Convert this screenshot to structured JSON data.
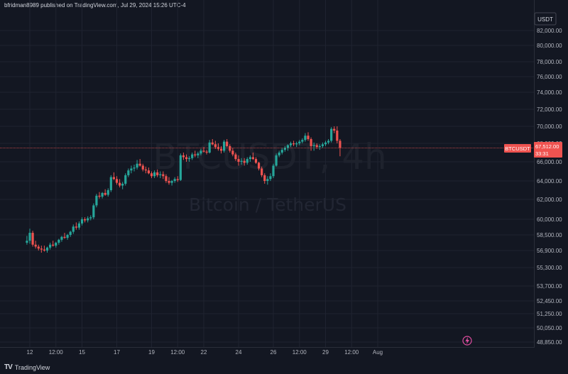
{
  "header": {
    "published_by": "bfridman8989 published on TradingView.com, Jul 29, 2024 15:26 UTC-4"
  },
  "watermark": {
    "symbol": "BTCUSDT, 4h",
    "name": "Bitcoin / TetherUS"
  },
  "price_tag": {
    "label": "BTCUSDT",
    "price": "67,512.00",
    "countdown": "33:31"
  },
  "footer": {
    "brand": "TradingView",
    "logo": "TV"
  },
  "colors": {
    "background": "#131722",
    "up": "#26a69a",
    "down": "#ef5350",
    "grid": "#1f2330",
    "text": "#b2b5be"
  },
  "chart_data": {
    "type": "candlestick",
    "currency": "USDT",
    "y_ticks": [
      {
        "label": "82,000.00",
        "value": 82000
      },
      {
        "label": "80,000.00",
        "value": 80000
      },
      {
        "label": "78,000.00",
        "value": 78000
      },
      {
        "label": "76,000.00",
        "value": 76000
      },
      {
        "label": "74,000.00",
        "value": 74000
      },
      {
        "label": "72,000.00",
        "value": 72000
      },
      {
        "label": "70,000.00",
        "value": 70000
      },
      {
        "label": "68,000.00",
        "value": 68000
      },
      {
        "label": "66,000.00",
        "value": 66000
      },
      {
        "label": "64,000.00",
        "value": 64000
      },
      {
        "label": "62,000.00",
        "value": 62000
      },
      {
        "label": "60,000.00",
        "value": 60000
      },
      {
        "label": "58,500.00",
        "value": 58500
      },
      {
        "label": "56,900.00",
        "value": 56900
      },
      {
        "label": "55,300.00",
        "value": 55300
      },
      {
        "label": "53,700.00",
        "value": 53700
      },
      {
        "label": "52,450.00",
        "value": 52450
      },
      {
        "label": "51,250.00",
        "value": 51250
      },
      {
        "label": "50,050.00",
        "value": 50050
      },
      {
        "label": "48,850.00",
        "value": 48850
      }
    ],
    "x_ticks": [
      {
        "label": "12",
        "t": "2024-07-12 00:00"
      },
      {
        "label": "12:00",
        "t": "2024-07-13 12:00"
      },
      {
        "label": "15",
        "t": "2024-07-15 00:00"
      },
      {
        "label": "17",
        "t": "2024-07-17 00:00"
      },
      {
        "label": "19",
        "t": "2024-07-19 00:00"
      },
      {
        "label": "12:00",
        "t": "2024-07-20 12:00"
      },
      {
        "label": "22",
        "t": "2024-07-22 00:00"
      },
      {
        "label": "24",
        "t": "2024-07-24 00:00"
      },
      {
        "label": "26",
        "t": "2024-07-26 00:00"
      },
      {
        "label": "12:00",
        "t": "2024-07-27 12:00"
      },
      {
        "label": "29",
        "t": "2024-07-29 00:00"
      },
      {
        "label": "12:00",
        "t": "2024-07-30 12:00"
      },
      {
        "label": "Aug",
        "t": "2024-08-01 00:00"
      }
    ],
    "last_price": 67512,
    "candles_start": "2024-07-11 20:00",
    "candles": [
      [
        57700,
        58400,
        57500,
        57900
      ],
      [
        57900,
        59100,
        57600,
        58700
      ],
      [
        58700,
        58900,
        57300,
        57500
      ],
      [
        57500,
        57900,
        57100,
        57300
      ],
      [
        57300,
        57500,
        56900,
        57100
      ],
      [
        57100,
        57400,
        56700,
        57000
      ],
      [
        57000,
        57400,
        56800,
        56900
      ],
      [
        56900,
        57300,
        56700,
        57200
      ],
      [
        57200,
        57700,
        57000,
        57500
      ],
      [
        57500,
        57900,
        57300,
        57400
      ],
      [
        57400,
        57800,
        57200,
        57700
      ],
      [
        57700,
        58100,
        57500,
        58000
      ],
      [
        58000,
        58400,
        57800,
        58300
      ],
      [
        58300,
        58700,
        58100,
        58200
      ],
      [
        58200,
        58600,
        58000,
        58500
      ],
      [
        58500,
        58900,
        58300,
        58800
      ],
      [
        58800,
        59500,
        58600,
        59300
      ],
      [
        59300,
        59700,
        59000,
        59200
      ],
      [
        59200,
        59800,
        59000,
        59600
      ],
      [
        59600,
        60200,
        59400,
        60000
      ],
      [
        60000,
        60200,
        59700,
        59900
      ],
      [
        59900,
        60300,
        59700,
        60100
      ],
      [
        60100,
        60400,
        59900,
        60200
      ],
      [
        60200,
        61600,
        60000,
        61400
      ],
      [
        61400,
        62600,
        61200,
        62400
      ],
      [
        62400,
        62800,
        62100,
        62300
      ],
      [
        62300,
        62800,
        62100,
        62700
      ],
      [
        62700,
        63100,
        62400,
        62500
      ],
      [
        62500,
        63200,
        62300,
        63000
      ],
      [
        63000,
        64600,
        62800,
        64400
      ],
      [
        64400,
        64900,
        64100,
        64200
      ],
      [
        64200,
        64500,
        63600,
        63800
      ],
      [
        63800,
        64200,
        63300,
        63500
      ],
      [
        63500,
        63900,
        63100,
        63700
      ],
      [
        63700,
        64800,
        63500,
        64600
      ],
      [
        64600,
        65300,
        64400,
        65100
      ],
      [
        65100,
        65600,
        64800,
        65300
      ],
      [
        65300,
        65700,
        65000,
        65400
      ],
      [
        65400,
        66200,
        65200,
        65800
      ],
      [
        65800,
        66300,
        65500,
        65600
      ],
      [
        65600,
        65800,
        65000,
        65200
      ],
      [
        65200,
        65500,
        64800,
        65100
      ],
      [
        65100,
        65400,
        64700,
        64800
      ],
      [
        64800,
        65000,
        64300,
        64500
      ],
      [
        64500,
        65100,
        64300,
        64900
      ],
      [
        64900,
        65200,
        64400,
        64600
      ],
      [
        64600,
        65000,
        64300,
        64700
      ],
      [
        64700,
        65000,
        64200,
        64500
      ],
      [
        64500,
        64700,
        63800,
        64000
      ],
      [
        64000,
        64400,
        63600,
        63800
      ],
      [
        63800,
        64100,
        63500,
        64000
      ],
      [
        64000,
        64400,
        63800,
        64200
      ],
      [
        64200,
        64500,
        63900,
        64100
      ],
      [
        64100,
        66900,
        64000,
        66700
      ],
      [
        66700,
        67000,
        66200,
        66500
      ],
      [
        66500,
        66800,
        66000,
        66300
      ],
      [
        66300,
        66600,
        66000,
        66400
      ],
      [
        66400,
        67000,
        66200,
        66800
      ],
      [
        66800,
        67200,
        66500,
        66700
      ],
      [
        66700,
        67100,
        66400,
        66900
      ],
      [
        66900,
        67400,
        66700,
        67200
      ],
      [
        67200,
        67600,
        67000,
        67100
      ],
      [
        67100,
        67300,
        66800,
        67000
      ],
      [
        67000,
        68400,
        66900,
        68100
      ],
      [
        68100,
        68500,
        67800,
        67900
      ],
      [
        67900,
        68300,
        67400,
        67600
      ],
      [
        67600,
        68000,
        67200,
        67400
      ],
      [
        67400,
        67700,
        66900,
        67200
      ],
      [
        67200,
        68400,
        67000,
        68200
      ],
      [
        68200,
        68500,
        67600,
        67700
      ],
      [
        67700,
        67900,
        67000,
        67200
      ],
      [
        67200,
        67500,
        66600,
        66800
      ],
      [
        66800,
        67000,
        66100,
        66300
      ],
      [
        66300,
        66700,
        65600,
        66000
      ],
      [
        66000,
        66400,
        65700,
        66100
      ],
      [
        66100,
        66400,
        65600,
        65900
      ],
      [
        65900,
        66500,
        65700,
        66300
      ],
      [
        66300,
        66700,
        66000,
        66500
      ],
      [
        66500,
        67000,
        66200,
        66300
      ],
      [
        66300,
        66500,
        65800,
        65900
      ],
      [
        65900,
        66000,
        65100,
        65300
      ],
      [
        65300,
        65500,
        64400,
        64600
      ],
      [
        64600,
        64800,
        63700,
        64000
      ],
      [
        64000,
        64500,
        63600,
        64200
      ],
      [
        64200,
        64800,
        64000,
        64500
      ],
      [
        64500,
        65800,
        64300,
        65600
      ],
      [
        65600,
        66900,
        65500,
        66700
      ],
      [
        66700,
        67200,
        66500,
        67000
      ],
      [
        67000,
        67500,
        66800,
        67300
      ],
      [
        67300,
        67700,
        67100,
        67500
      ],
      [
        67500,
        67900,
        67200,
        67800
      ],
      [
        67800,
        68200,
        67600,
        68000
      ],
      [
        68000,
        68300,
        67700,
        67900
      ],
      [
        67900,
        68200,
        67600,
        68000
      ],
      [
        68000,
        68400,
        67800,
        68200
      ],
      [
        68200,
        68600,
        68000,
        68400
      ],
      [
        68400,
        69200,
        68200,
        68900
      ],
      [
        68900,
        69300,
        68300,
        68500
      ],
      [
        68500,
        68700,
        67200,
        67700
      ],
      [
        67700,
        68100,
        67200,
        67800
      ],
      [
        67800,
        68000,
        67400,
        67600
      ],
      [
        67600,
        67900,
        67300,
        67700
      ],
      [
        67700,
        68100,
        67500,
        67900
      ],
      [
        67900,
        68300,
        67700,
        68100
      ],
      [
        68100,
        68500,
        67900,
        68300
      ],
      [
        68300,
        69900,
        68100,
        69700
      ],
      [
        69700,
        70000,
        69200,
        69500
      ],
      [
        69500,
        70000,
        68000,
        68300
      ],
      [
        68300,
        68500,
        66600,
        67512
      ]
    ]
  }
}
